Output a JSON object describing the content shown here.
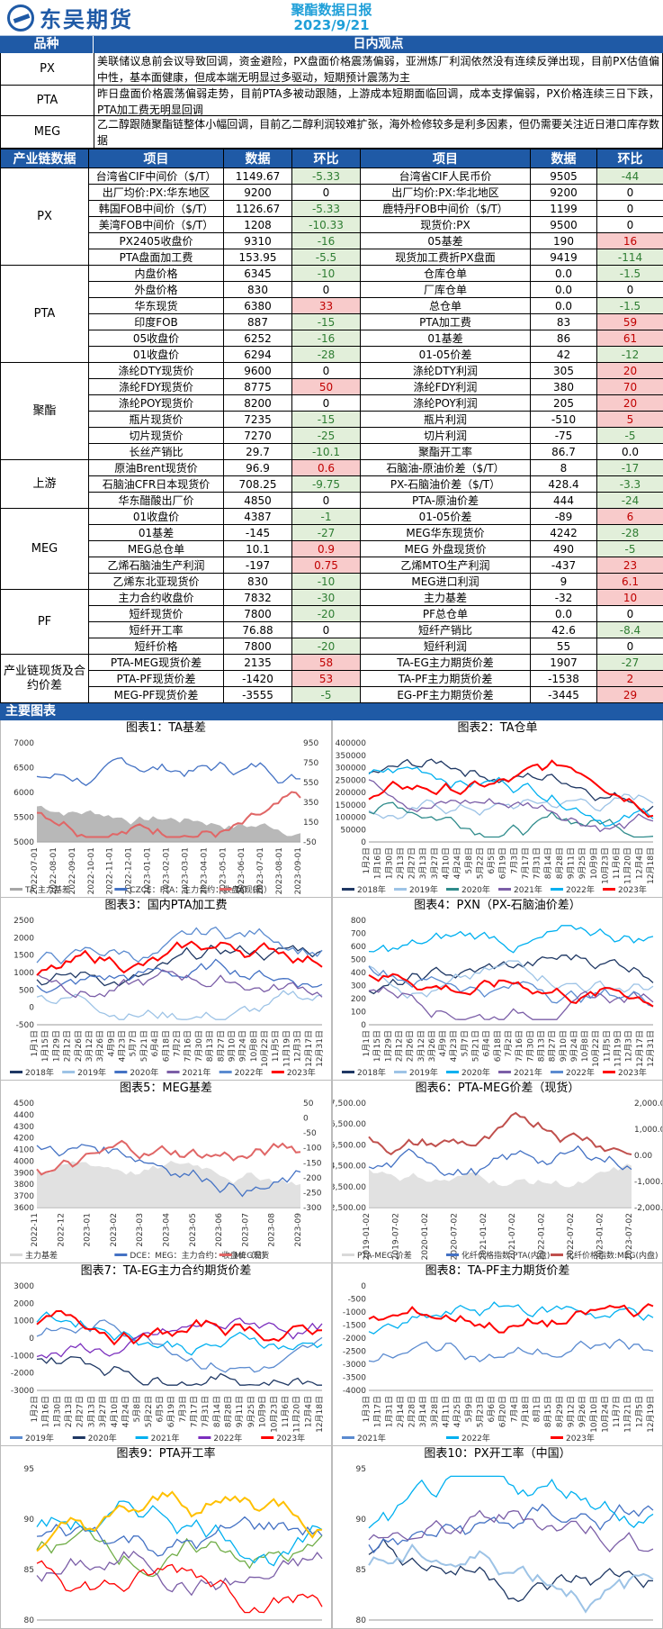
{
  "header": {
    "logo_text": "东吴期货",
    "logo_sub": "SCF",
    "title": "聚酯数据日报",
    "date": "2023/9/21"
  },
  "opinion": {
    "col1": "品种",
    "col2": "日内观点",
    "rows": [
      {
        "k": "PX",
        "v": "美联储议息前会议导致回调，资金避险，PX盘面价格震荡偏弱，亚洲炼厂利润依然没有连续反弹出现，目前PX估值偏中性，基本面健康，但成本端无明显过多驱动，短期预计震荡为主"
      },
      {
        "k": "PTA",
        "v": "昨日盘面价格震荡偏弱走势，目前PTA多被动跟随，上游成本短期面临回调，成本支撑偏弱，PX价格连续三日下跌，PTA加工费无明显回调"
      },
      {
        "k": "MEG",
        "v": "乙二醇跟随聚酯链整体小幅回调，目前乙二醇利润较难扩张，海外检修较多是利多因素，但仍需要关注近日港口库存数据"
      }
    ]
  },
  "table": {
    "headers": [
      "产业链数据",
      "项目",
      "数据",
      "环比",
      "项目",
      "数据",
      "环比"
    ],
    "groups": [
      {
        "cat": "PX",
        "rows": [
          [
            "台湾省CIF中间价（$/T）",
            "1149.67",
            "-5.33",
            "台湾省CIF人民币价",
            "9505",
            "-44"
          ],
          [
            "出厂均价:PX:华东地区",
            "9200",
            "0",
            "出厂均价:PX:华北地区",
            "9200",
            "0"
          ],
          [
            "韩国FOB中间价（$/T）",
            "1126.67",
            "-5.33",
            "鹿特丹FOB中间价（$/T）",
            "1199",
            "0"
          ],
          [
            "美湾FOB中间价（$/T）",
            "1208",
            "-10.33",
            "现货价:PX",
            "9500",
            "0"
          ],
          [
            "PX2405收盘价",
            "9310",
            "-16",
            "05基差",
            "190",
            "16"
          ],
          [
            "PTA盘面加工费",
            "153.95",
            "-5.5",
            "现货加工费折PX盘面",
            "9419",
            "-114"
          ]
        ]
      },
      {
        "cat": "PTA",
        "rows": [
          [
            "内盘价格",
            "6345",
            "-10",
            "仓库仓单",
            "0.0",
            "-1.5"
          ],
          [
            "外盘价格",
            "830",
            "0",
            "厂库仓单",
            "0.0",
            "0"
          ],
          [
            "华东现货",
            "6380",
            "33",
            "总仓单",
            "0.0",
            "-1.5"
          ],
          [
            "印度FOB",
            "887",
            "-15",
            "PTA加工费",
            "83",
            "59"
          ],
          [
            "05收盘价",
            "6252",
            "-16",
            "01基差",
            "86",
            "61"
          ],
          [
            "01收盘价",
            "6294",
            "-28",
            "01-05价差",
            "42",
            "-12"
          ]
        ]
      },
      {
        "cat": "聚酯",
        "rows": [
          [
            "涤纶DTY现货价",
            "9600",
            "0",
            "涤纶DTY利润",
            "305",
            "20"
          ],
          [
            "涤纶FDY现货价",
            "8775",
            "50",
            "涤纶FDY利润",
            "380",
            "70"
          ],
          [
            "涤纶POY现货价",
            "8200",
            "0",
            "涤纶POY利润",
            "205",
            "20"
          ],
          [
            "瓶片现货价",
            "7235",
            "-15",
            "瓶片利润",
            "-510",
            "5"
          ],
          [
            "切片现货价",
            "7270",
            "-25",
            "切片利润",
            "-75",
            "-5"
          ],
          [
            "长丝产销比",
            "29.7",
            "-10.1",
            "聚酯开工率",
            "86.7",
            "0.0"
          ]
        ]
      },
      {
        "cat": "上游",
        "rows": [
          [
            "原油Brent现货价",
            "96.9",
            "0.6",
            "石脑油-原油价差（$/T）",
            "8",
            "-17"
          ],
          [
            "石脑油CFR日本现货价",
            "708.25",
            "-9.75",
            "PX-石脑油价差（$/T）",
            "428.4",
            "-3.3"
          ],
          [
            "华东醋酸出厂价",
            "4850",
            "0",
            "PTA-原油价差",
            "444",
            "-24"
          ]
        ]
      },
      {
        "cat": "MEG",
        "rows": [
          [
            "01收盘价",
            "4387",
            "-1",
            "01-05价差",
            "-89",
            "6"
          ],
          [
            "01基差",
            "-145",
            "-27",
            "MEG华东现货价",
            "4242",
            "-28"
          ],
          [
            "MEG总仓单",
            "10.1",
            "0.9",
            "MEG 外盘现货价",
            "490",
            "-5"
          ],
          [
            "乙烯石脑油生产利润",
            "-197",
            "0.75",
            "乙烯MTO生产利润",
            "-437",
            "23"
          ],
          [
            "乙烯东北亚现货价",
            "830",
            "-10",
            "MEG进口利润",
            "9",
            "6.1"
          ]
        ]
      },
      {
        "cat": "PF",
        "rows": [
          [
            "主力合约收盘价",
            "7832",
            "-30",
            "主力基差",
            "-32",
            "10"
          ],
          [
            "短纤现货价",
            "7800",
            "-20",
            "PF总仓单",
            "0.0",
            "0"
          ],
          [
            "短纤开工率",
            "76.88",
            "0",
            "短纤产销比",
            "42.6",
            "-8.4"
          ],
          [
            "短纤价格",
            "7800",
            "-20",
            "短纤利润",
            "55",
            "0"
          ]
        ]
      },
      {
        "cat": "产业链现货及合约价差",
        "rows": [
          [
            "PTA-MEG现货价差",
            "2135",
            "58",
            "TA-EG主力期货价差",
            "1907",
            "-27"
          ],
          [
            "PTA-PF现货价差",
            "-1420",
            "53",
            "TA-PF主力期货价差",
            "-1538",
            "2"
          ],
          [
            "MEG-PF现货价差",
            "-3555",
            "-5",
            "EG-PF主力期货价差",
            "-3445",
            "29"
          ]
        ]
      }
    ]
  },
  "charts_section": "主要图表",
  "charts": [
    {
      "title": "图表1：TA基差",
      "y_left": [
        "7000",
        "6500",
        "6000",
        "5500",
        "5000"
      ],
      "y_right": [
        "950",
        "750",
        "550",
        "350",
        "150",
        "-50"
      ],
      "x_ticks": [
        "2022-07-01",
        "2022-08-01",
        "2022-09-01",
        "2022-10-01",
        "2022-11-01",
        "2022-12-01",
        "2023-01-01",
        "2023-02-01",
        "2023-03-01",
        "2023-04-01",
        "2023-05-01",
        "2023-06-01",
        "2023-07-01",
        "2023-08-01",
        "2023-09-01"
      ],
      "legend": [
        "TA 主力基差",
        "CZCE：PTA：主力合约：收盘价（日）",
        "TA现货"
      ],
      "colors": [
        "#a6a6a6",
        "#4472c4",
        "#e06666"
      ]
    },
    {
      "title": "图表2：TA仓单",
      "y_left": [
        "400000",
        "350000",
        "300000",
        "250000",
        "200000",
        "150000",
        "100000",
        "50000",
        "0"
      ],
      "x_ticks": [
        "1月2日",
        "1月16日",
        "1月30日",
        "2月13日",
        "2月27日",
        "3月13日",
        "3月27日",
        "4月10日",
        "4月24日",
        "5月8日",
        "5月22日",
        "6月5日",
        "6月19日",
        "7月3日",
        "7月17日",
        "7月31日",
        "8月14日",
        "8月28日",
        "9月11日",
        "9月25日",
        "10月9日",
        "10月23日",
        "11月6日",
        "11月20日",
        "12月4日",
        "12月18日"
      ],
      "legend": [
        "2018年",
        "2019年",
        "2020年",
        "2021年",
        "2022年",
        "2023年"
      ],
      "colors": [
        "#1f3864",
        "#9dc3e6",
        "#2e8b8b",
        "#7b5ea7",
        "#00b0f0",
        "#ff0000"
      ]
    },
    {
      "title": "图表3：国内PTA加工费",
      "y_left": [
        "2500",
        "2000",
        "1500",
        "1000",
        "500",
        "0",
        "-500"
      ],
      "x_ticks": [
        "1月1日",
        "1月15日",
        "1月29日",
        "2月12日",
        "2月26日",
        "3月12日",
        "3月26日",
        "4月9日",
        "4月23日",
        "5月7日",
        "5月21日",
        "6月4日",
        "6月18日",
        "7月2日",
        "7月16日",
        "7月30日",
        "8月13日",
        "8月27日",
        "9月10日",
        "9月24日",
        "10月8日",
        "10月22日",
        "11月5日",
        "11月19日",
        "12月3日",
        "12月17日",
        "12月31日"
      ],
      "legend": [
        "2018年",
        "2019年",
        "2020年",
        "2021年",
        "2022年",
        "2023年"
      ],
      "colors": [
        "#1f3864",
        "#9dc3e6",
        "#4472c4",
        "#7b5ea7",
        "#5b8bd0",
        "#ff0000"
      ]
    },
    {
      "title": "图表4：PXN（PX-石脑油价差）",
      "y_left": [
        "800",
        "700",
        "600",
        "500",
        "400",
        "300",
        "200",
        "100",
        "0"
      ],
      "x_ticks": [
        "1月1日",
        "1月15日",
        "1月29日",
        "2月12日",
        "2月26日",
        "3月12日",
        "3月26日",
        "4月9日",
        "4月23日",
        "5月7日",
        "5月21日",
        "6月4日",
        "6月18日",
        "7月2日",
        "7月16日",
        "7月30日",
        "8月13日",
        "8月27日",
        "9月10日",
        "9月24日",
        "10月8日",
        "10月22日",
        "11月5日",
        "11月19日",
        "12月3日",
        "12月17日",
        "12月31日"
      ],
      "legend": [
        "2018年",
        "2019年",
        "2020年",
        "2021年",
        "2022年",
        "2023年"
      ],
      "colors": [
        "#1f3864",
        "#9dc3e6",
        "#00b0f0",
        "#7b5ea7",
        "#5b8bd0",
        "#ff0000"
      ]
    },
    {
      "title": "图表5：MEG基差",
      "y_left": [
        "4500",
        "4400",
        "4300",
        "4200",
        "4100",
        "4000",
        "3900",
        "3800",
        "3700",
        "3600"
      ],
      "y_right": [
        "50",
        "0",
        "-50",
        "-100",
        "-150",
        "-200",
        "-250",
        "-300"
      ],
      "x_ticks": [
        "2022-11",
        "2022-12",
        "2023-01",
        "2023-02",
        "2023-03",
        "2023-04",
        "2023-05",
        "2023-06",
        "2023-07",
        "2023-08",
        "2023-09"
      ],
      "legend": [
        "主力基差",
        "DCE：MEG：主力合约：收盘价（日）",
        "MEG现货"
      ],
      "colors": [
        "#d9d9d9",
        "#4472c4",
        "#e06666"
      ]
    },
    {
      "title": "图表6：PTA-MEG价差（现货）",
      "y_left": [
        "7,500.00",
        "6,500.00",
        "5,500.00",
        "4,500.00",
        "3,500.00",
        "2,500.00"
      ],
      "y_right": [
        "2,000.00",
        "1,000.00",
        "0.00",
        "-1,000.00",
        "-2,000.00"
      ],
      "x_ticks": [
        "2019-01-02",
        "2019-07-02",
        "2020-01-02",
        "2020-07-02",
        "2021-01-02",
        "2021-07-02",
        "2022-01-02",
        "2022-07-02",
        "2023-01-02",
        "2023-07-02"
      ],
      "legend": [
        "PTA-MEG 价差",
        "化纤价格指数:PTA(内盘)",
        "化纤价格指数:MEG(内盘)"
      ],
      "colors": [
        "#d9d9d9",
        "#4472c4",
        "#c0504d"
      ]
    },
    {
      "title": "图表7：TA-EG主力合约期货价差",
      "y_left": [
        "3000",
        "2000",
        "1000",
        "0",
        "-1000",
        "-2000",
        "-3000"
      ],
      "x_ticks": [
        "1月2日",
        "1月16日",
        "1月30日",
        "2月13日",
        "2月27日",
        "3月13日",
        "3月27日",
        "4月10日",
        "4月24日",
        "5月8日",
        "5月22日",
        "6月5日",
        "6月19日",
        "7月3日",
        "7月17日",
        "7月31日",
        "8月14日",
        "8月28日",
        "9月11日",
        "9月25日",
        "10月9日",
        "10月23日",
        "11月6日",
        "11月20日",
        "12月4日",
        "12月18日"
      ],
      "legend": [
        "2019年",
        "2020年",
        "2021年",
        "2022年",
        "2023年"
      ],
      "colors": [
        "#5b8bd0",
        "#1f3864",
        "#00b0f0",
        "#7b2fbe",
        "#ff0000"
      ]
    },
    {
      "title": "图表8：TA-PF主力期货价差",
      "y_left": [
        "0",
        "-500",
        "-1000",
        "-1500",
        "-2000",
        "-2500",
        "-3000",
        "-3500",
        "-4000"
      ],
      "x_ticks": [
        "1月3日",
        "1月17日",
        "1月31日",
        "2月14日",
        "2月28日",
        "3月14日",
        "3月28日",
        "4月11日",
        "4月25日",
        "5月9日",
        "5月23日",
        "6月6日",
        "6月20日",
        "7月4日",
        "7月18日",
        "8月1日",
        "8月15日",
        "8月29日",
        "9月12日",
        "9月26日",
        "10月10日",
        "10月24日",
        "11月7日",
        "11月21日",
        "12月5日",
        "12月19日"
      ],
      "legend": [
        "2021年",
        "2022年",
        "2023年"
      ],
      "colors": [
        "#5b8bd0",
        "#00b0f0",
        "#ff0000"
      ]
    },
    {
      "title": "图表9：PTA开工率",
      "y_left": [
        "95",
        "90",
        "85",
        "80"
      ],
      "x_ticks": [],
      "legend": [],
      "colors": [
        "#70ad47",
        "#7b5ea7",
        "#4472c4",
        "#00b0f0",
        "#ff0000",
        "#ffc000"
      ]
    },
    {
      "title": "图表10：PX开工率（中国）",
      "y_left": [
        "95",
        "90",
        "85",
        "80"
      ],
      "x_ticks": [],
      "legend": [],
      "colors": [
        "#1f3864",
        "#4472c4",
        "#00b0f0",
        "#7b5ea7",
        "#9dc3e6"
      ]
    }
  ]
}
